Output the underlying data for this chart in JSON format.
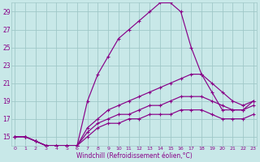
{
  "xlabel": "Windchill (Refroidissement éolien,°C)",
  "bg_color": "#c8e8e8",
  "grid_color": "#a0c8c8",
  "line_color": "#880088",
  "xlim": [
    0,
    23
  ],
  "ylim": [
    14,
    30
  ],
  "yticks": [
    15,
    17,
    19,
    21,
    23,
    25,
    27,
    29
  ],
  "xticks": [
    0,
    1,
    2,
    3,
    4,
    5,
    6,
    7,
    8,
    9,
    10,
    11,
    12,
    13,
    14,
    15,
    16,
    17,
    18,
    19,
    20,
    21,
    22,
    23
  ],
  "curves": [
    {
      "x": [
        0,
        1,
        2,
        3,
        4,
        5,
        6,
        7,
        8,
        9,
        10,
        11,
        12,
        13,
        14,
        15,
        16,
        17,
        18,
        19,
        20,
        21,
        22,
        23
      ],
      "y": [
        15,
        15,
        14.5,
        14,
        14,
        13.5,
        14,
        19,
        22,
        24,
        26,
        27,
        28,
        29,
        30,
        30,
        29,
        25,
        22,
        20,
        18,
        18,
        18,
        19
      ]
    },
    {
      "x": [
        0,
        1,
        2,
        3,
        4,
        5,
        6,
        7,
        8,
        9,
        10,
        11,
        12,
        13,
        14,
        15,
        16,
        17,
        18,
        19,
        20,
        21,
        22,
        23
      ],
      "y": [
        15,
        15,
        14.5,
        14,
        14,
        14,
        14,
        16,
        17,
        18,
        18.5,
        19,
        19.5,
        20,
        20.5,
        21,
        21.5,
        22,
        22,
        21,
        20,
        19,
        18.5,
        19
      ]
    },
    {
      "x": [
        0,
        1,
        2,
        3,
        4,
        5,
        6,
        7,
        8,
        9,
        10,
        11,
        12,
        13,
        14,
        15,
        16,
        17,
        18,
        19,
        20,
        21,
        22,
        23
      ],
      "y": [
        15,
        15,
        14.5,
        14,
        14,
        14,
        14,
        15.5,
        16.5,
        17,
        17.5,
        17.5,
        18,
        18.5,
        18.5,
        19,
        19.5,
        19.5,
        19.5,
        19,
        18.5,
        18,
        18,
        18.5
      ]
    },
    {
      "x": [
        0,
        1,
        2,
        3,
        4,
        5,
        6,
        7,
        8,
        9,
        10,
        11,
        12,
        13,
        14,
        15,
        16,
        17,
        18,
        19,
        20,
        21,
        22,
        23
      ],
      "y": [
        15,
        15,
        14.5,
        14,
        14,
        14,
        14,
        15,
        16,
        16.5,
        16.5,
        17,
        17,
        17.5,
        17.5,
        17.5,
        18,
        18,
        18,
        17.5,
        17,
        17,
        17,
        17.5
      ]
    }
  ]
}
